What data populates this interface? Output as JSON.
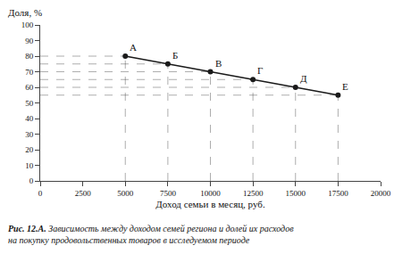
{
  "chart_data": {
    "type": "line",
    "xlabel": "Доход семьи в месяц, руб.",
    "ylabel": "Доля, %",
    "caption_label": "Рис. 12.А.",
    "caption": "Зависимость между доходом семей региона и долей их расходов\nна покупку продовольственных товаров в исследуемом периоде",
    "x": [
      5000,
      7500,
      10000,
      12500,
      15000,
      17500
    ],
    "values": [
      80,
      75,
      70,
      65,
      60,
      55
    ],
    "annotations": [
      "А",
      "Б",
      "В",
      "Г",
      "Д",
      "Е"
    ],
    "color": "#1a1a1a",
    "marker": "circle",
    "xlim": [
      0,
      20000
    ],
    "ylim": [
      0,
      100
    ],
    "xticks": [
      0,
      2500,
      5000,
      7500,
      10000,
      12500,
      15000,
      17500,
      20000
    ],
    "yticks": [
      0,
      10,
      20,
      30,
      40,
      50,
      60,
      70,
      80,
      90,
      100
    ],
    "grid": false
  }
}
